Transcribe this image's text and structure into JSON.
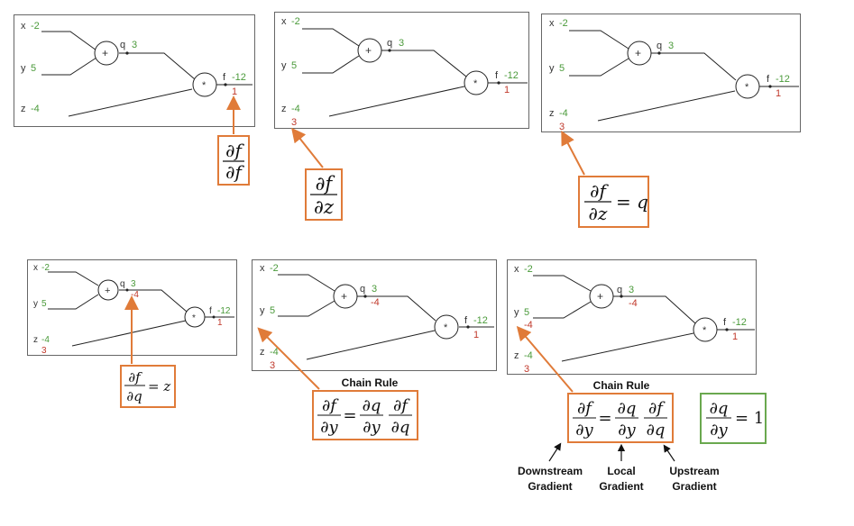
{
  "graph_labels": {
    "x": "x",
    "y": "y",
    "z": "z",
    "q": "q",
    "f": "f",
    "plus": "+",
    "times": "*"
  },
  "forward": {
    "x": "-2",
    "y": "5",
    "z": "-4",
    "q": "3",
    "f": "-12"
  },
  "grads": {
    "f": "1",
    "z": "3",
    "q": "-4",
    "y": "-4"
  },
  "equations": {
    "df_df": {
      "num": "∂f",
      "den": "∂f"
    },
    "df_dz": {
      "num": "∂f",
      "den": "∂z"
    },
    "df_dz_q": {
      "num": "∂f",
      "den": "∂z",
      "rhs": "= q"
    },
    "df_dq_z": {
      "num": "∂f",
      "den": "∂q",
      "rhs": "= z"
    },
    "chain1": {
      "a_num": "∂f",
      "a_den": "∂y",
      "eq": "=",
      "b_num": "∂q",
      "b_den": "∂y",
      "c_num": "∂f",
      "c_den": "∂q"
    },
    "chain2": {
      "a_num": "∂f",
      "a_den": "∂y",
      "eq": "=",
      "b_num": "∂q",
      "b_den": "∂y",
      "c_num": "∂f",
      "c_den": "∂q"
    },
    "local": {
      "num": "∂q",
      "den": "∂y",
      "rhs": "= 1"
    }
  },
  "captions": {
    "chain_rule_1": "Chain Rule",
    "chain_rule_2": "Chain Rule",
    "downstream_1": "Downstream",
    "downstream_2": "Gradient",
    "local_1": "Local",
    "local_2": "Gradient",
    "upstream_1": "Upstream",
    "upstream_2": "Gradient"
  },
  "colors": {
    "forward": "#4a9a3a",
    "gradient": "#c0392b",
    "box": "#e07b39",
    "local_box": "#6aa84f"
  }
}
